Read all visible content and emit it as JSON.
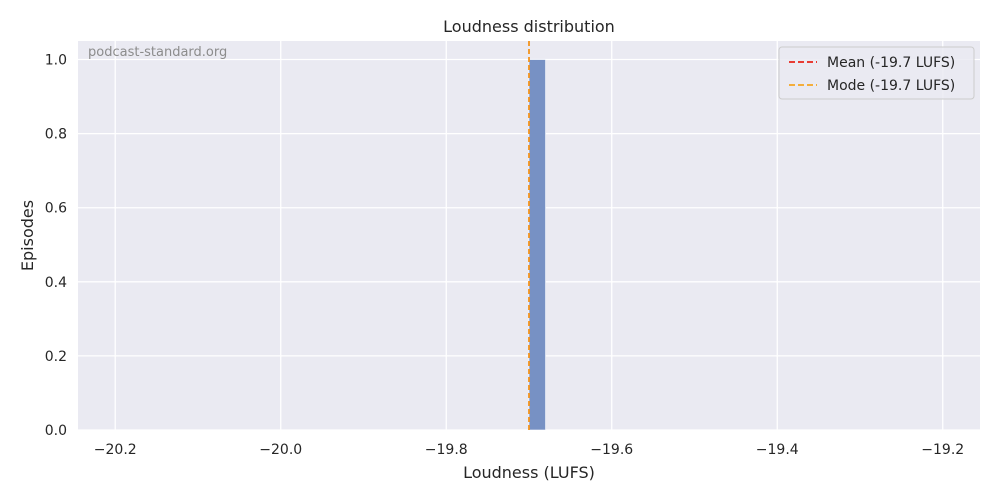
{
  "chart_data": {
    "type": "bar",
    "title": "Loudness distribution",
    "xlabel": "Loudness (LUFS)",
    "ylabel": "Episodes",
    "watermark": "podcast-standard.org",
    "xlim": [
      -20.245,
      -19.155
    ],
    "ylim": [
      0,
      1.05
    ],
    "xticks": [
      -20.2,
      -20.0,
      -19.8,
      -19.6,
      -19.4,
      -19.2
    ],
    "xtick_labels": [
      "−20.2",
      "−20.0",
      "−19.8",
      "−19.6",
      "−19.4",
      "−19.2"
    ],
    "yticks": [
      0.0,
      0.2,
      0.4,
      0.6,
      0.8,
      1.0
    ],
    "ytick_labels": [
      "0.0",
      "0.2",
      "0.4",
      "0.6",
      "0.8",
      "1.0"
    ],
    "bins": [
      {
        "x0": -19.7,
        "x1": -19.68,
        "count": 1
      }
    ],
    "reference_lines": [
      {
        "label": "Mean (-19.7 LUFS)",
        "x": -19.7,
        "color": "#e8231a"
      },
      {
        "label": "Mode (-19.7 LUFS)",
        "x": -19.7,
        "color": "#f5a623"
      }
    ],
    "legend_position": "top-right",
    "grid": true,
    "colors": {
      "background": "#eaeaf2",
      "grid": "#ffffff",
      "bar": "#7791c4"
    }
  }
}
